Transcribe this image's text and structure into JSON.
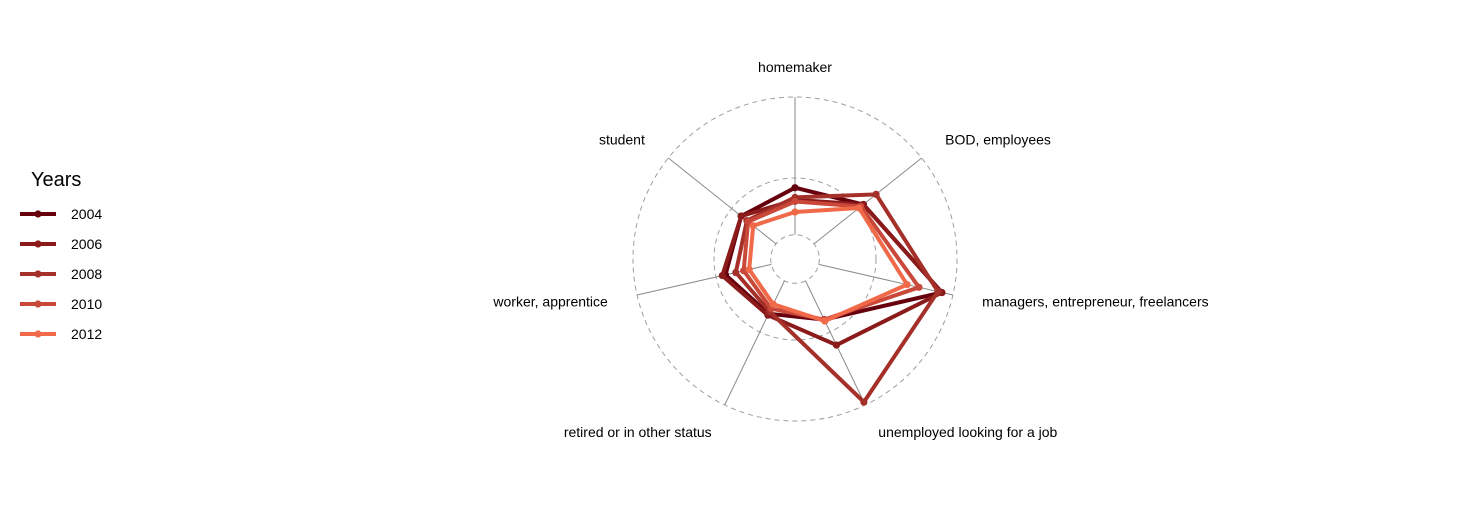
{
  "chart_data": {
    "type": "radar",
    "title": "",
    "axes": [
      "homemaker",
      "BOD, employees",
      "managers, entrepreneur, freelancers",
      "unemployed looking for a job",
      "retired or in other status",
      "worker, apprentice",
      "student"
    ],
    "rlim": [
      0,
      2
    ],
    "grid_levels": [
      0.3,
      1.0,
      2.0
    ],
    "series": [
      {
        "name": "2004",
        "color": "#67000d",
        "values": [
          0.88,
          1.08,
          1.86,
          0.83,
          0.75,
          0.88,
          0.85
        ]
      },
      {
        "name": "2006",
        "color": "#8b1a1a",
        "values": [
          0.73,
          1.08,
          1.86,
          1.18,
          0.77,
          0.92,
          0.85
        ]
      },
      {
        "name": "2008",
        "color": "#a5302a",
        "values": [
          0.76,
          1.28,
          1.81,
          1.96,
          0.72,
          0.75,
          0.76
        ]
      },
      {
        "name": "2010",
        "color": "#c9483a",
        "values": [
          0.71,
          1.04,
          1.57,
          0.83,
          0.68,
          0.65,
          0.74
        ]
      },
      {
        "name": "2012",
        "color": "#f06a4a",
        "values": [
          0.58,
          1.01,
          1.42,
          0.85,
          0.62,
          0.58,
          0.66
        ]
      }
    ],
    "legend": {
      "title": "Years",
      "position": "left"
    },
    "grid": true
  }
}
